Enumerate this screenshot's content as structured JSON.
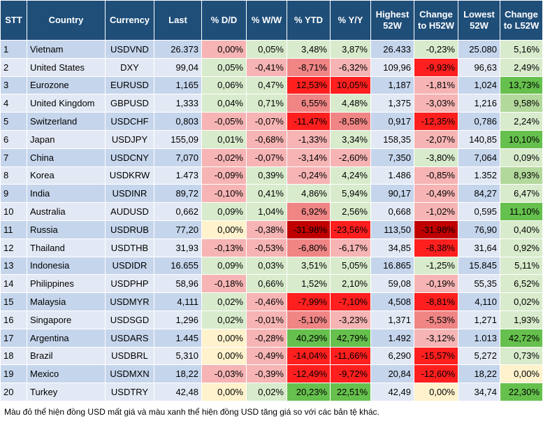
{
  "table": {
    "header": [
      "STT",
      "Country",
      "Currency",
      "Last",
      "% D/D",
      "% W/W",
      "% YTD",
      "% Y/Y",
      "Highest 52W",
      "Change to H52W",
      "Lowest 52W",
      "Change to L52W"
    ],
    "rows": [
      [
        "1",
        "Vietnam",
        "USDVND",
        "26.373",
        "0,00%",
        "0,05%",
        "3,48%",
        "3,87%",
        "26.433",
        "-0,23%",
        "25.080",
        "5,16%"
      ],
      [
        "2",
        "United States",
        "DXY",
        "99,04",
        "0,05%",
        "-0,41%",
        "-8,71%",
        "-6,32%",
        "109,96",
        "-9,93%",
        "96,63",
        "2,49%"
      ],
      [
        "3",
        "Eurozone",
        "EURUSD",
        "1,165",
        "0,06%",
        "0,47%",
        "12,53%",
        "10,05%",
        "1,187",
        "-1,81%",
        "1,024",
        "13,73%"
      ],
      [
        "4",
        "United Kingdom",
        "GBPUSD",
        "1,333",
        "0,04%",
        "0,71%",
        "6,55%",
        "4,48%",
        "1,375",
        "-3,03%",
        "1,216",
        "9,58%"
      ],
      [
        "5",
        "Switzerland",
        "USDCHF",
        "0,803",
        "-0,05%",
        "-0,07%",
        "-11,47%",
        "-8,58%",
        "0,917",
        "-12,35%",
        "0,786",
        "2,24%"
      ],
      [
        "6",
        "Japan",
        "USDJPY",
        "155,09",
        "0,01%",
        "-0,68%",
        "-1,33%",
        "3,34%",
        "158,35",
        "-2,07%",
        "140,85",
        "10,10%"
      ],
      [
        "7",
        "China",
        "USDCNY",
        "7,070",
        "-0,02%",
        "-0,07%",
        "-3,14%",
        "-2,60%",
        "7,350",
        "-3,80%",
        "7,064",
        "0,09%"
      ],
      [
        "8",
        "Korea",
        "USDKRW",
        "1.473",
        "-0,09%",
        "0,39%",
        "-0,24%",
        "4,24%",
        "1.486",
        "-0,85%",
        "1.352",
        "8,93%"
      ],
      [
        "9",
        "India",
        "USDINR",
        "89,72",
        "-0,10%",
        "0,41%",
        "4,86%",
        "5,94%",
        "90,17",
        "-0,49%",
        "84,27",
        "6,47%"
      ],
      [
        "10",
        "Australia",
        "AUDUSD",
        "0,662",
        "0,09%",
        "1,04%",
        "6,92%",
        "2,56%",
        "0,668",
        "-1,02%",
        "0,595",
        "11,10%"
      ],
      [
        "11",
        "Russia",
        "USDRUB",
        "77,20",
        "0,00%",
        "-0,38%",
        "-31,98%",
        "-23,56%",
        "113,50",
        "-31,98%",
        "76,90",
        "0,40%"
      ],
      [
        "12",
        "Thailand",
        "USDTHB",
        "31,93",
        "-0,13%",
        "-0,53%",
        "-6,80%",
        "-6,17%",
        "34,85",
        "-8,38%",
        "31,64",
        "0,92%"
      ],
      [
        "13",
        "Indonesia",
        "USDIDR",
        "16.655",
        "0,09%",
        "0,03%",
        "3,51%",
        "5,05%",
        "16.865",
        "-1,25%",
        "15.845",
        "5,11%"
      ],
      [
        "14",
        "Philippines",
        "USDPHP",
        "58,96",
        "-0,18%",
        "0,66%",
        "1,52%",
        "2,10%",
        "59,08",
        "-0,19%",
        "55,35",
        "6,52%"
      ],
      [
        "15",
        "Malaysia",
        "USDMYR",
        "4,111",
        "0,02%",
        "-0,46%",
        "-7,99%",
        "-7,10%",
        "4,508",
        "-8,81%",
        "4,110",
        "0,02%"
      ],
      [
        "16",
        "Singapore",
        "USDSGD",
        "1,296",
        "0,02%",
        "-0,01%",
        "-5,10%",
        "-3,23%",
        "1,371",
        "-5,53%",
        "1,271",
        "1,93%"
      ],
      [
        "17",
        "Argentina",
        "USDARS",
        "1.445",
        "0,00%",
        "-0,28%",
        "40,29%",
        "42,79%",
        "1.492",
        "-3,12%",
        "1.013",
        "42,72%"
      ],
      [
        "18",
        "Brazil",
        "USDBRL",
        "5,310",
        "0,00%",
        "-0,49%",
        "-14,04%",
        "-11,66%",
        "6,290",
        "-15,57%",
        "5,272",
        "0,73%"
      ],
      [
        "19",
        "Mexico",
        "USDMXN",
        "18,22",
        "-0,03%",
        "-0,39%",
        "-12,49%",
        "-9,72%",
        "20,84",
        "-12,60%",
        "18,22",
        "0,00%"
      ],
      [
        "20",
        "Turkey",
        "USDTRY",
        "42,48",
        "0,00%",
        "0,02%",
        "20,23%",
        "22,51%",
        "42,49",
        "0,00%",
        "34,74",
        "22,30%"
      ]
    ]
  },
  "footer": "Màu đỏ thể hiện đồng USD mất giá và màu xanh thể hiện đồng USD tăng giá so với các bản tệ khác."
}
